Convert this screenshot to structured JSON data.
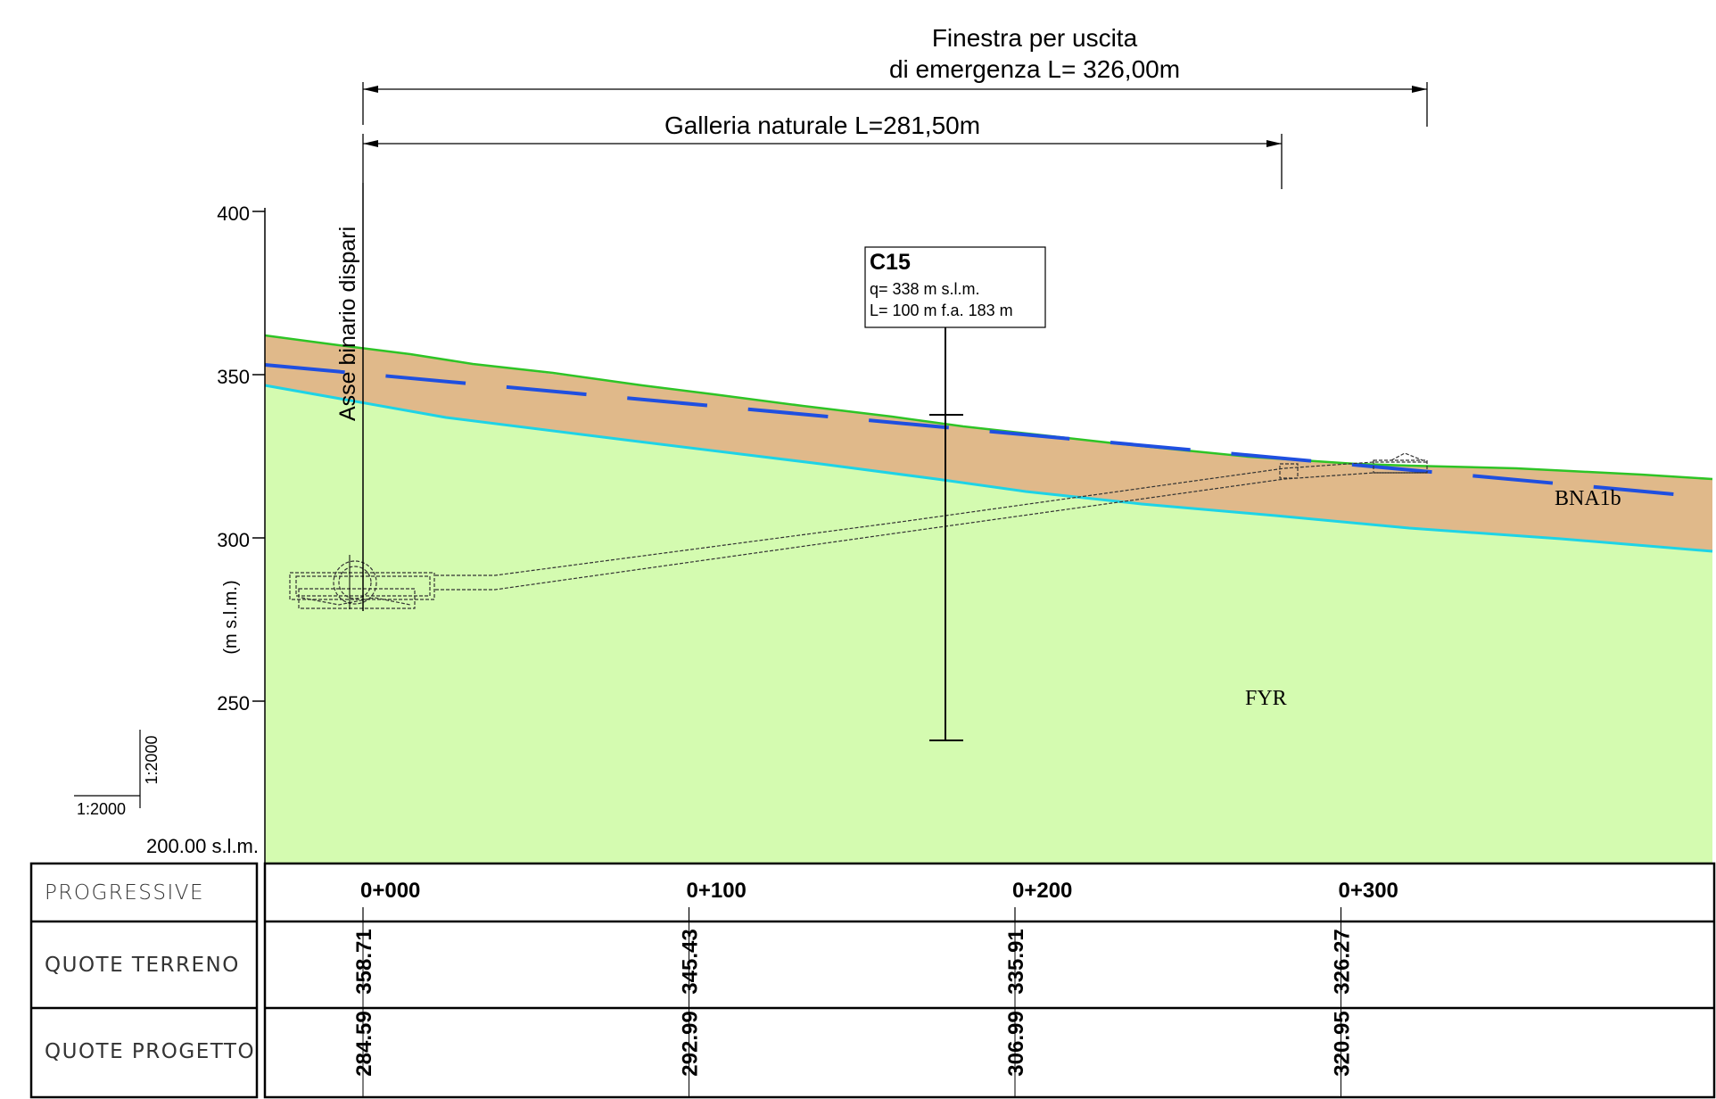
{
  "title": {
    "window_line1": "Finestra per uscita",
    "window_line2": "di emergenza L= 326,00m",
    "tunnel": "Galleria naturale L=281,50m"
  },
  "axis": {
    "ylabel": "(m s.l.m.)",
    "ticks": [
      "400",
      "350",
      "300",
      "250"
    ],
    "base": "200.00 s.l.m.",
    "axis_label": "Asse binario dispari",
    "scale_v": "1:2000",
    "scale_h": "1:2000"
  },
  "borehole": {
    "name": "C15",
    "line1": "q= 338 m s.l.m.",
    "line2": "L= 100 m f.a. 183 m"
  },
  "units": {
    "upper": "BNA1b",
    "lower": "FYR"
  },
  "colors": {
    "upper_unit": "#e0b98a",
    "lower_unit": "#d4fbb0",
    "ground_line": "#2ec426",
    "contact_line": "#1ed3e6",
    "water_table": "#1f4fe0"
  },
  "table": {
    "row_labels": [
      "PROGRESSIVE",
      "QUOTE TERRENO",
      "QUOTE PROGETTO"
    ],
    "progressive": [
      "0+000",
      "0+100",
      "0+200",
      "0+300"
    ],
    "quote_terreno": [
      "358.71",
      "345.43",
      "335.91",
      "326.27"
    ],
    "quote_progetto": [
      "284.59",
      "292.99",
      "306.99",
      "320.95"
    ]
  }
}
